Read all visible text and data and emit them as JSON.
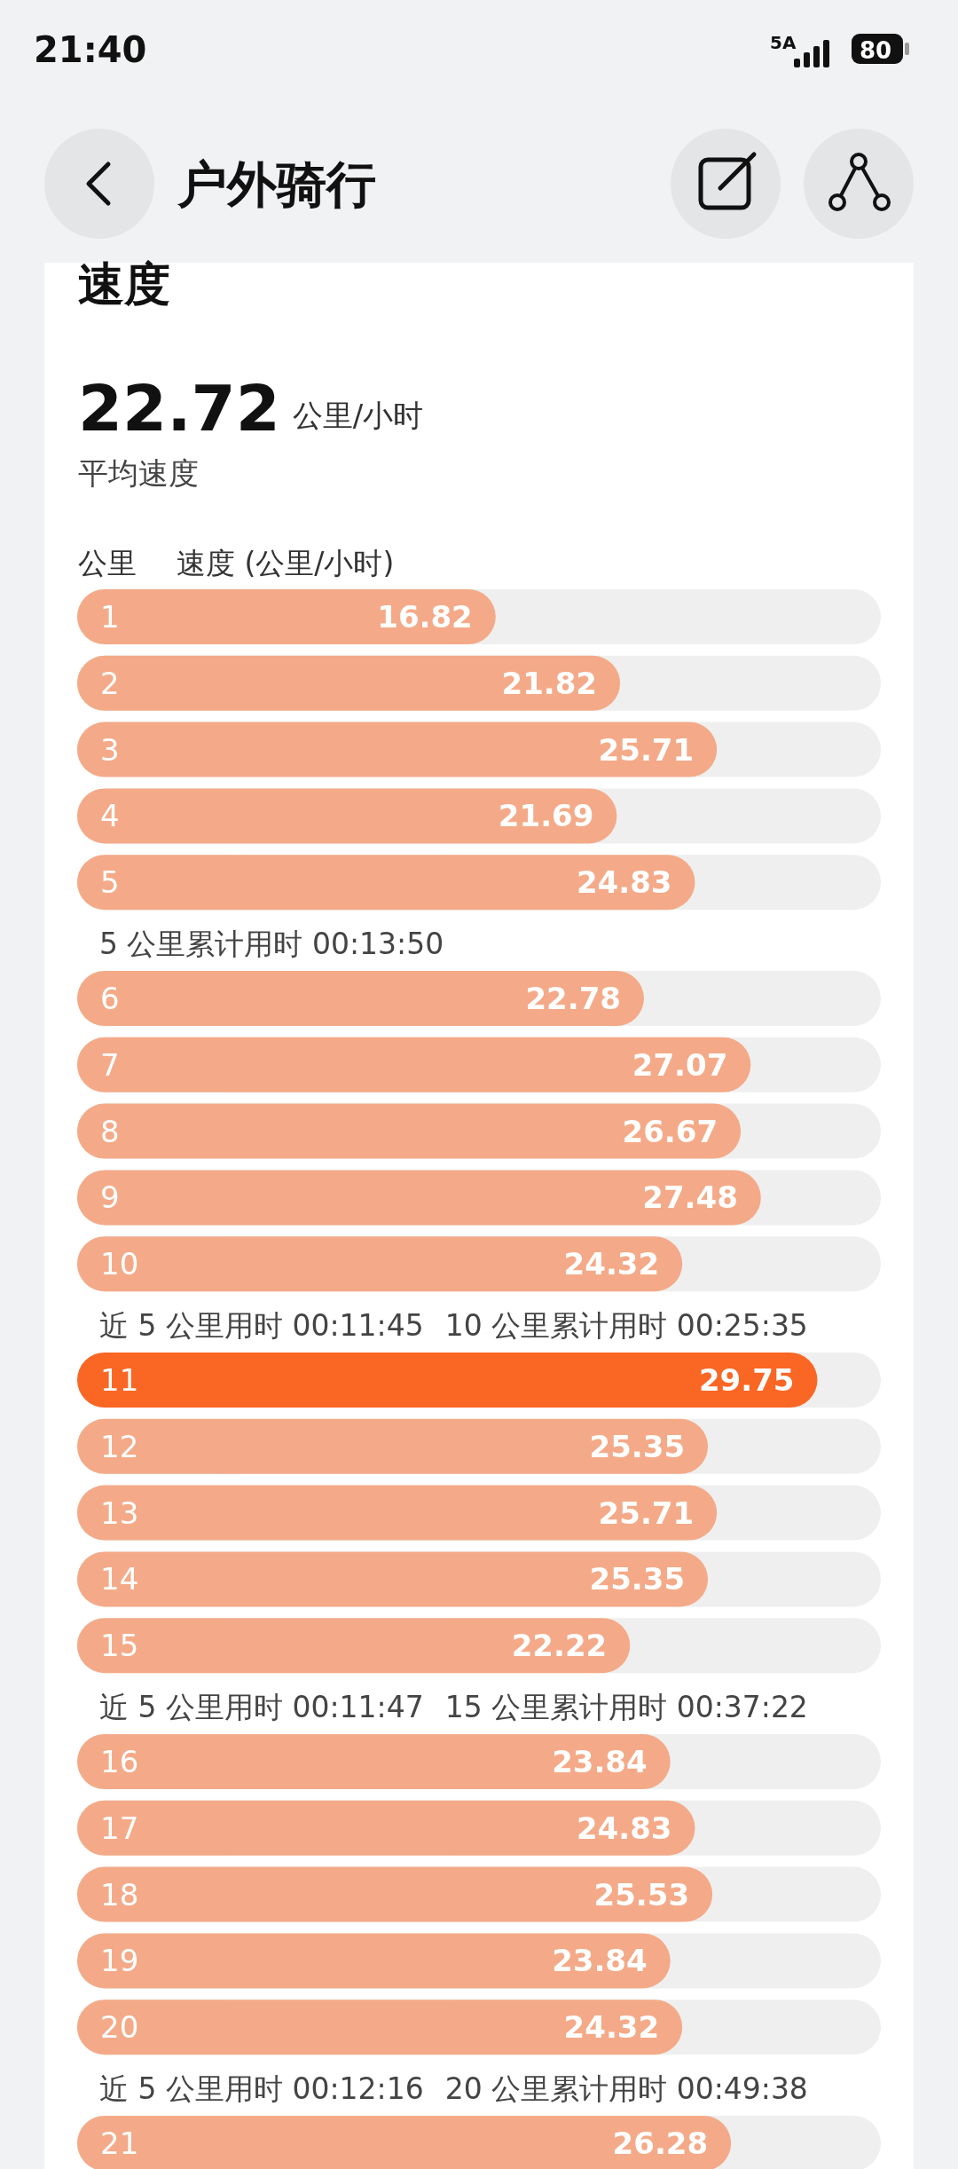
{
  "chart_data": {
    "type": "bar",
    "orientation": "horizontal",
    "title": "户外骑行",
    "subtitle": "速度",
    "ylabel": "公里",
    "xlabel": "速度 (公里/小时)",
    "categories": [
      "1",
      "2",
      "3",
      "4",
      "5",
      "6",
      "7",
      "8",
      "9",
      "10",
      "11",
      "12",
      "13",
      "14",
      "15",
      "16",
      "17",
      "18",
      "19",
      "20",
      "21"
    ],
    "values": [
      16.82,
      21.82,
      25.71,
      21.69,
      24.83,
      22.78,
      27.07,
      26.67,
      27.48,
      24.32,
      29.75,
      25.35,
      25.71,
      25.35,
      22.22,
      23.84,
      24.83,
      25.53,
      23.84,
      24.32,
      26.28
    ],
    "colors": [
      "#f4aa88",
      "#f4aa88",
      "#f4aa88",
      "#f4aa88",
      "#f4aa88",
      "#f4aa88",
      "#f4aa88",
      "#f4aa88",
      "#f4aa88",
      "#f4aa88",
      "#fa6624",
      "#f4aa88",
      "#f4aa88",
      "#f4aa88",
      "#f4aa88",
      "#f4aa88",
      "#f4aa88",
      "#f4aa88",
      "#f4aa88",
      "#f4aa88",
      "#f4aa88"
    ],
    "xlim": [
      0,
      32.3
    ],
    "data_labels": true,
    "annotations": [
      "21:40",
      "5A",
      "80",
      "22.72",
      "公里/小时",
      "平均速度",
      "5 公里累计用时 00:13:50",
      "近 5 公里用时 00:11:45",
      "10 公里累计用时 00:25:35",
      "近 5 公里用时 00:11:47",
      "15 公里累计用时 00:37:22",
      "近 5 公里用时 00:12:16",
      "20 公里累计用时 00:49:38"
    ]
  }
}
